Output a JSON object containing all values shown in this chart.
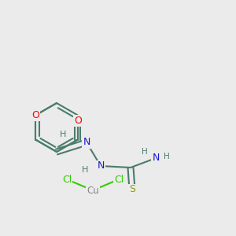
{
  "bg_color": "#ebebeb",
  "bond_color": "#4a7c6e",
  "bond_width": 1.5,
  "atom_colors": {
    "O": "#ff0000",
    "N": "#1a1acc",
    "S": "#999900",
    "Cl": "#33cc00",
    "Cu": "#888888",
    "H": "#4a7c6e"
  },
  "font_size": 9.0,
  "figsize": [
    3.0,
    3.0
  ],
  "dpi": 100
}
